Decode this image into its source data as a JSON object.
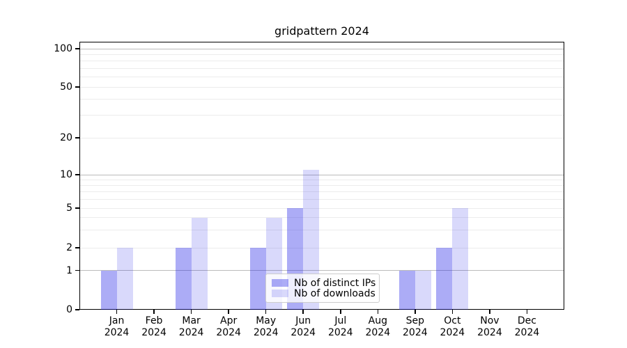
{
  "chart_data": {
    "type": "bar",
    "title": "gridpattern 2024",
    "categories": [
      "Jan",
      "Feb",
      "Mar",
      "Apr",
      "May",
      "Jun",
      "Jul",
      "Aug",
      "Sep",
      "Oct",
      "Nov",
      "Dec"
    ],
    "year_label": "2024",
    "series": [
      {
        "name": "Nb of distinct IPs",
        "color": "rgba(30,30,230,0.37)",
        "values": [
          1,
          0,
          2,
          0,
          2,
          5,
          0,
          0,
          1,
          2,
          0,
          0
        ]
      },
      {
        "name": "Nb of downloads",
        "color": "rgba(30,30,230,0.17)",
        "values": [
          2,
          0,
          4,
          0,
          4,
          11,
          0,
          0,
          1,
          5,
          0,
          0
        ]
      }
    ],
    "yscale": "log-with-zero",
    "y_labeled_ticks": [
      0,
      1,
      2,
      5,
      10,
      20,
      50,
      100
    ],
    "y_major_ticks": [
      1,
      10,
      100
    ],
    "y_minor_ticks": [
      2,
      3,
      4,
      5,
      6,
      7,
      8,
      9,
      20,
      30,
      40,
      50,
      60,
      70,
      80,
      90
    ],
    "ylim": [
      0,
      115
    ],
    "xlabel": "",
    "ylabel": "",
    "grid": "horizontal",
    "legend_position": "lower center",
    "colors": {
      "major_grid": "#bbbbbb",
      "minor_grid": "#ececec",
      "axis": "#000000",
      "text": "#000000",
      "background": "#ffffff"
    }
  }
}
